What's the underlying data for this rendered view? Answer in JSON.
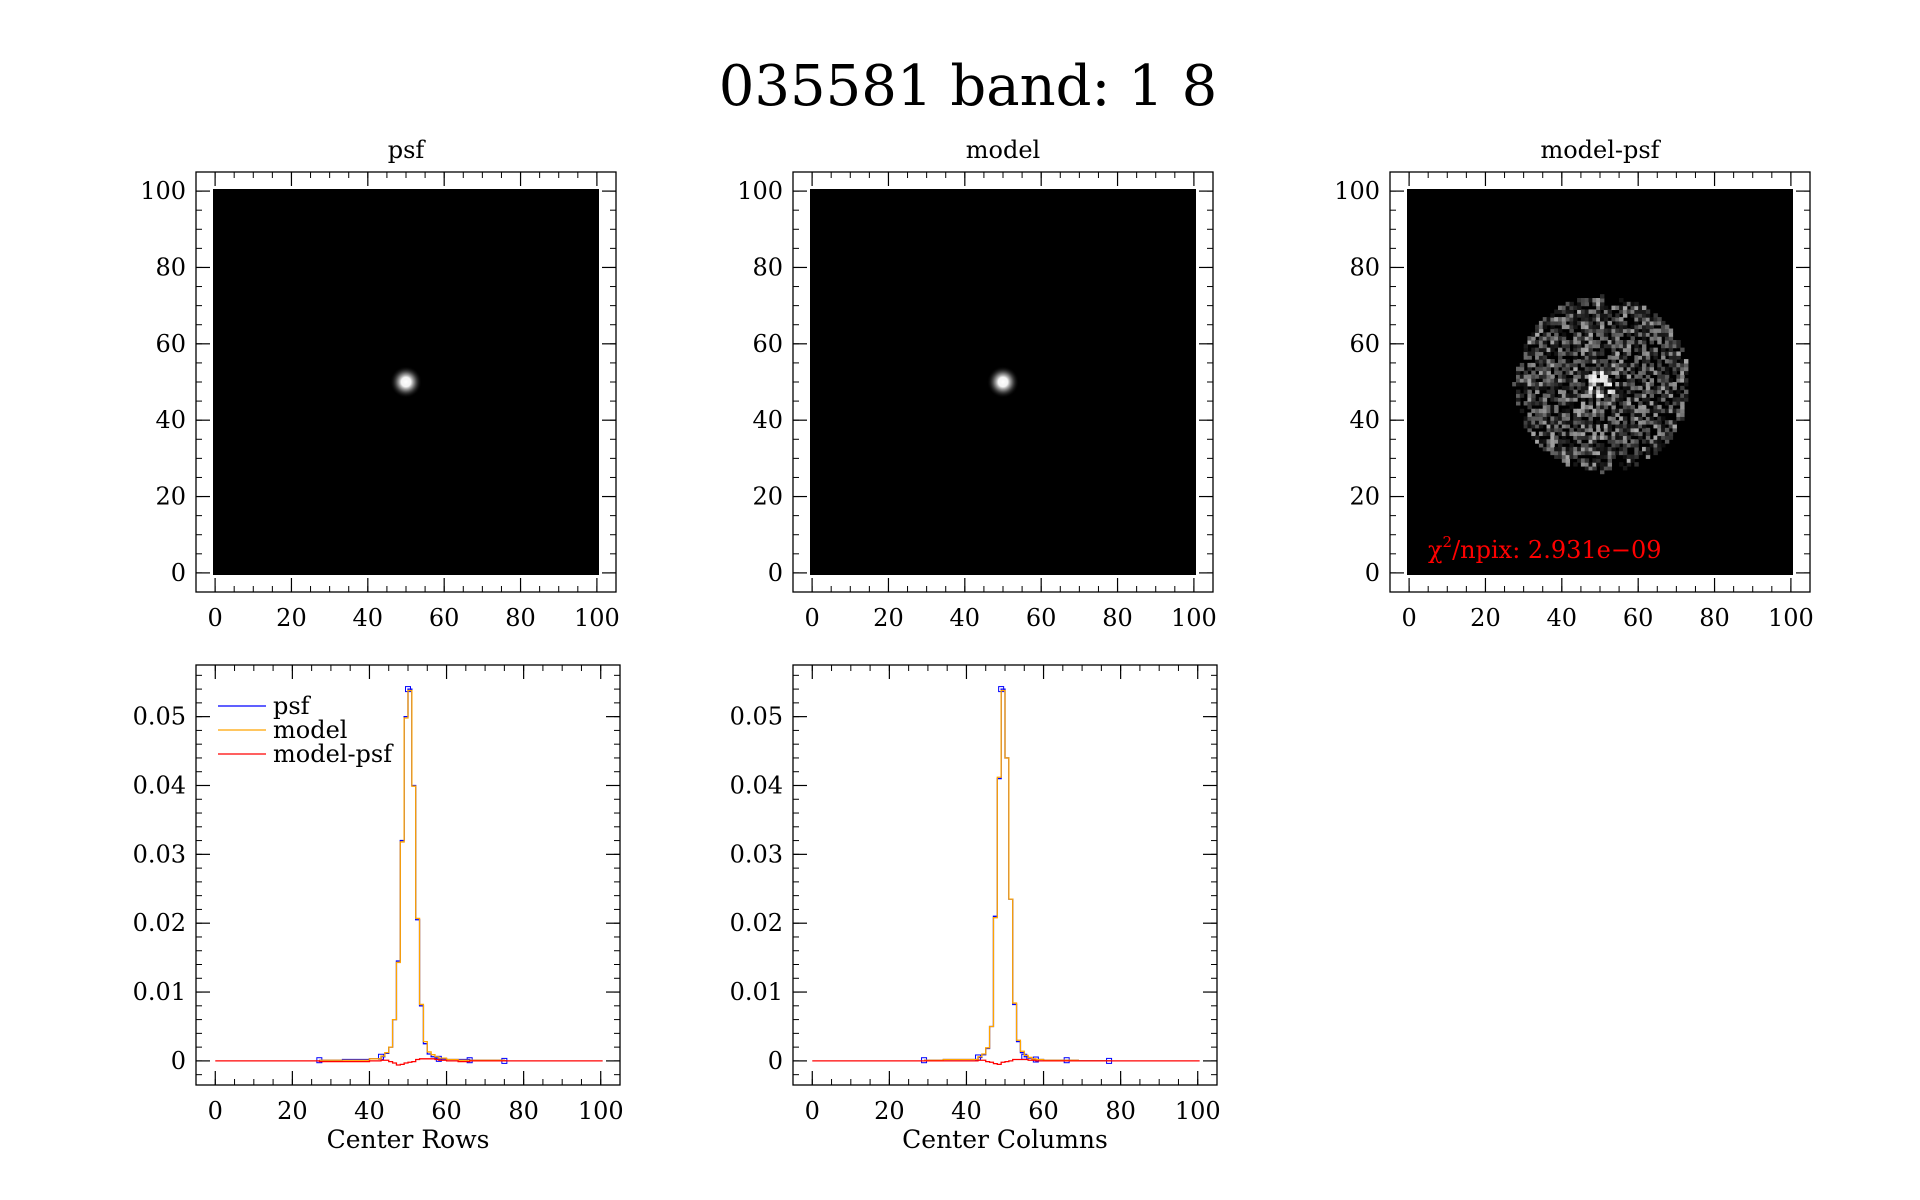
{
  "title": "035581 band: 1 8",
  "colors": {
    "psf": "#0000ff",
    "model": "#ffa500",
    "model_minus_psf": "#ff0000",
    "chi_text": "#ff0000",
    "image_bg": "#000000"
  },
  "chart_data": [
    {
      "type": "heatmap",
      "title": "psf",
      "xlim": [
        -5,
        105
      ],
      "ylim": [
        -5,
        105
      ],
      "xticks": [
        "0",
        "20",
        "40",
        "60",
        "80",
        "100"
      ],
      "yticks": [
        "0",
        "20",
        "40",
        "60",
        "80",
        "100"
      ],
      "image_extent": [
        0,
        100
      ],
      "content": "compact bright source",
      "source_center": [
        50,
        50
      ],
      "source_sigma": 1.3
    },
    {
      "type": "heatmap",
      "title": "model",
      "xlim": [
        -5,
        105
      ],
      "ylim": [
        -5,
        105
      ],
      "xticks": [
        "0",
        "20",
        "40",
        "60",
        "80",
        "100"
      ],
      "yticks": [
        "0",
        "20",
        "40",
        "60",
        "80",
        "100"
      ],
      "image_extent": [
        0,
        100
      ],
      "content": "compact bright source",
      "source_center": [
        50,
        50
      ],
      "source_sigma": 1.3
    },
    {
      "type": "heatmap",
      "title": "model-psf",
      "xlim": [
        -5,
        105
      ],
      "ylim": [
        -5,
        105
      ],
      "xticks": [
        "0",
        "20",
        "40",
        "60",
        "80",
        "100"
      ],
      "yticks": [
        "0",
        "20",
        "40",
        "60",
        "80",
        "100"
      ],
      "image_extent": [
        0,
        100
      ],
      "content": "noisy residual disk",
      "residual_center": [
        50,
        50
      ],
      "residual_radius": 23,
      "annotation_prefix": "χ",
      "annotation_superscript": "2",
      "annotation_text": "/npix: 2.931e−09"
    },
    {
      "type": "line",
      "xlabel": "Center Rows",
      "xlim": [
        -5,
        105
      ],
      "ylim": [
        -0.0035,
        0.0575
      ],
      "xticks": [
        "0",
        "20",
        "40",
        "60",
        "80",
        "100"
      ],
      "yticks": [
        "0",
        "0.01",
        "0.02",
        "0.03",
        "0.04",
        "0.05"
      ],
      "ytick_values": [
        0,
        0.01,
        0.02,
        0.03,
        0.04,
        0.05
      ],
      "legend_position": "top-left",
      "series": [
        {
          "name": "psf",
          "step": true,
          "x": [
            27,
            33,
            40,
            43,
            44,
            45,
            46,
            47,
            48,
            49,
            50,
            51,
            52,
            53,
            54,
            55,
            56,
            57,
            58,
            60,
            63,
            66,
            69,
            72,
            75
          ],
          "y": [
            0.0001,
            0.0002,
            0.0003,
            0.0006,
            0.0011,
            0.002,
            0.006,
            0.0145,
            0.032,
            0.05,
            0.054,
            0.04,
            0.0205,
            0.008,
            0.0025,
            0.001,
            0.0006,
            0.0004,
            0.0003,
            0.0002,
            0.0002,
            0.0001,
            0.0001,
            0.0001,
            0.0
          ]
        },
        {
          "name": "model",
          "step": true,
          "x": [
            27,
            33,
            40,
            43,
            44,
            45,
            46,
            47,
            48,
            49,
            50,
            51,
            52,
            53,
            54,
            55,
            56,
            57,
            58,
            60,
            63,
            66,
            69,
            72,
            75
          ],
          "y": [
            0.0001,
            0.0001,
            0.0003,
            0.0007,
            0.0012,
            0.002,
            0.006,
            0.0143,
            0.0318,
            0.0498,
            0.0538,
            0.0399,
            0.0207,
            0.0082,
            0.0028,
            0.0013,
            0.0009,
            0.0006,
            0.0004,
            0.0002,
            0.0001,
            0.0001,
            0.0001,
            0.0001,
            0.0
          ]
        },
        {
          "name": "model-psf",
          "step": true,
          "x": [
            0,
            27,
            40,
            43,
            44,
            45,
            46,
            47,
            48,
            49,
            50,
            51,
            52,
            53,
            54,
            55,
            56,
            57,
            58,
            60,
            63,
            66,
            69,
            72,
            75,
            100
          ],
          "y": [
            0,
            -0.0001,
            0.0,
            0.0001,
            0.0001,
            -0.0001,
            -0.0003,
            -0.0006,
            -0.0005,
            -0.0003,
            -0.0002,
            -0.0001,
            0.0002,
            0.0003,
            0.0003,
            0.0003,
            0.0003,
            0.0002,
            0.0001,
            0.0,
            -0.0001,
            0.0,
            0.0,
            0.0,
            0.0,
            0
          ]
        }
      ]
    },
    {
      "type": "line",
      "xlabel": "Center Columns",
      "xlim": [
        -5,
        105
      ],
      "ylim": [
        -0.0035,
        0.0575
      ],
      "xticks": [
        "0",
        "20",
        "40",
        "60",
        "80",
        "100"
      ],
      "yticks": [
        "0",
        "0.01",
        "0.02",
        "0.03",
        "0.04",
        "0.05"
      ],
      "ytick_values": [
        0,
        0.01,
        0.02,
        0.03,
        0.04,
        0.05
      ],
      "series": [
        {
          "name": "psf",
          "step": true,
          "x": [
            29,
            34,
            40,
            43,
            44,
            45,
            46,
            47,
            48,
            49,
            50,
            51,
            52,
            53,
            54,
            55,
            56,
            57,
            58,
            60,
            63,
            66,
            69,
            72,
            77
          ],
          "y": [
            0.0001,
            0.0002,
            0.0002,
            0.0005,
            0.0009,
            0.0018,
            0.005,
            0.021,
            0.041,
            0.054,
            0.044,
            0.0235,
            0.0082,
            0.0028,
            0.0012,
            0.0006,
            0.0004,
            0.0002,
            0.0002,
            0.0001,
            0.0001,
            0.0001,
            0.0,
            0.0,
            0.0
          ]
        },
        {
          "name": "model",
          "step": true,
          "x": [
            29,
            34,
            40,
            43,
            44,
            45,
            46,
            47,
            48,
            49,
            50,
            51,
            52,
            53,
            54,
            55,
            56,
            57,
            58,
            60,
            63,
            66,
            69,
            72,
            77
          ],
          "y": [
            0.0001,
            0.0002,
            0.0002,
            0.0006,
            0.001,
            0.0019,
            0.005,
            0.0208,
            0.0412,
            0.0538,
            0.044,
            0.0235,
            0.0084,
            0.003,
            0.0014,
            0.0008,
            0.0005,
            0.0003,
            0.0002,
            0.0001,
            0.0001,
            0.0001,
            0.0,
            0.0,
            0.0
          ]
        },
        {
          "name": "model-psf",
          "step": true,
          "x": [
            0,
            29,
            40,
            43,
            44,
            45,
            46,
            47,
            48,
            49,
            50,
            51,
            52,
            53,
            54,
            55,
            56,
            57,
            58,
            60,
            63,
            66,
            69,
            72,
            77,
            100
          ],
          "y": [
            0,
            0.0,
            0.0,
            0.0001,
            0.0001,
            -0.0001,
            -0.0002,
            -0.0004,
            -0.0005,
            -0.0002,
            -0.0001,
            0.0,
            0.0002,
            0.0002,
            0.0002,
            0.0002,
            0.0001,
            0.0001,
            0.0,
            0.0,
            0.0,
            0.0,
            0.0,
            0.0,
            0.0,
            0
          ]
        }
      ]
    }
  ]
}
